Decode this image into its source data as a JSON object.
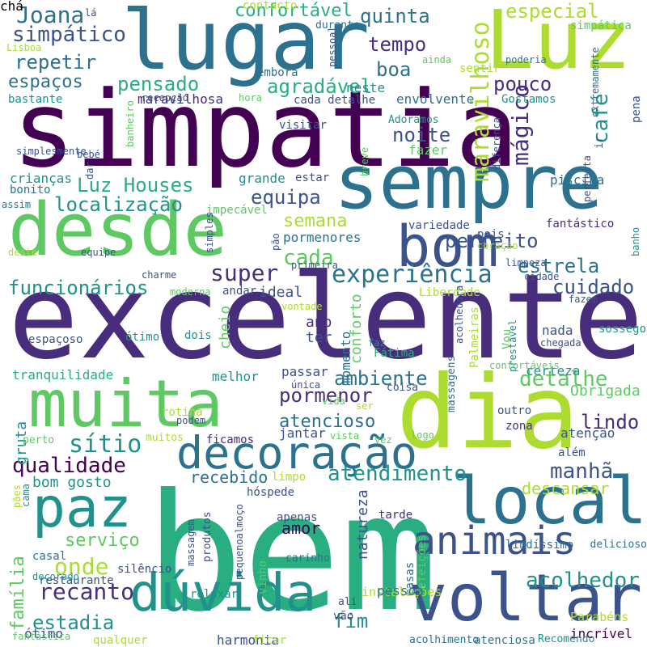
{
  "palette": [
    "#440154",
    "#472d7b",
    "#3b528b",
    "#2c728e",
    "#21918c",
    "#28ae80",
    "#5ec962",
    "#addc30",
    "#fde725"
  ],
  "words": [
    {
      "text": "bem",
      "color": "#28ae80"
    },
    {
      "text": "excelente",
      "color": "#472d7b"
    },
    {
      "text": "simpatia",
      "color": "#440154"
    },
    {
      "text": "dia",
      "color": "#addc30"
    },
    {
      "text": "sempre",
      "color": "#2c728e"
    },
    {
      "text": "lugar",
      "color": "#2c728e"
    },
    {
      "text": "Luz",
      "color": "#addc30"
    },
    {
      "text": "desde",
      "color": "#5ec962"
    },
    {
      "text": "muita",
      "color": "#5ec962"
    },
    {
      "text": "voltar",
      "color": "#3b528b"
    },
    {
      "text": "local",
      "color": "#2c728e"
    },
    {
      "text": "bom",
      "color": "#3b528b"
    },
    {
      "text": "paz",
      "color": "#21918c"
    },
    {
      "text": "dúvida",
      "color": "#21918c"
    },
    {
      "text": "decoração",
      "color": "#2c728e"
    },
    {
      "text": "animais",
      "color": "#3b528b"
    },
    {
      "text": "experiência",
      "color": "#2c728e"
    },
    {
      "text": "maravilhoso",
      "color": "#addc30"
    },
    {
      "text": "mágico",
      "color": "#472d7b"
    },
    {
      "text": "café",
      "color": "#21918c"
    },
    {
      "text": "Joana",
      "color": "#2c728e"
    },
    {
      "text": "simpático",
      "color": "#3b528b"
    },
    {
      "text": "confortável",
      "color": "#28ae80"
    },
    {
      "text": "quinta",
      "color": "#2c728e"
    },
    {
      "text": "especial",
      "color": "#addc30"
    },
    {
      "text": "repetir",
      "color": "#2c728e"
    },
    {
      "text": "pensado",
      "color": "#28ae80"
    },
    {
      "text": "tempo",
      "color": "#472d7b"
    },
    {
      "text": "agradável",
      "color": "#28ae80"
    },
    {
      "text": "boa",
      "color": "#2c728e"
    },
    {
      "text": "espaços",
      "color": "#2c728e"
    },
    {
      "text": "pouco",
      "color": "#472d7b"
    },
    {
      "text": "noite",
      "color": "#3b528b"
    },
    {
      "text": "Luz Houses",
      "color": "#28ae80"
    },
    {
      "text": "localização",
      "color": "#21918c"
    },
    {
      "text": "equipa",
      "color": "#3b528b"
    },
    {
      "text": "perfeito",
      "color": "#3b528b"
    },
    {
      "text": "semana",
      "color": "#addc30"
    },
    {
      "text": "cada",
      "color": "#5ec962"
    },
    {
      "text": "super",
      "color": "#472d7b"
    },
    {
      "text": "estrela",
      "color": "#2c728e"
    },
    {
      "text": "funcionários",
      "color": "#21918c"
    },
    {
      "text": "cuidado",
      "color": "#3b528b"
    },
    {
      "text": "ambiente",
      "color": "#2c728e"
    },
    {
      "text": "detalhe",
      "color": "#5ec962"
    },
    {
      "text": "pormenor",
      "color": "#472d7b"
    },
    {
      "text": "atencioso",
      "color": "#2c728e"
    },
    {
      "text": "sítio",
      "color": "#21918c"
    },
    {
      "text": "qualidade",
      "color": "#440154"
    },
    {
      "text": "atendimento",
      "color": "#21918c"
    },
    {
      "text": "manhã",
      "color": "#3b528b"
    },
    {
      "text": "lindo",
      "color": "#472d7b"
    },
    {
      "text": "Obrigada",
      "color": "#5ec962"
    },
    {
      "text": "recebido",
      "color": "#2c728e"
    },
    {
      "text": "bom gosto",
      "color": "#21918c"
    },
    {
      "text": "descansar",
      "color": "#addc30"
    },
    {
      "text": "serviço",
      "color": "#5ec962"
    },
    {
      "text": "onde",
      "color": "#addc30"
    },
    {
      "text": "amor",
      "color": "#440154"
    },
    {
      "text": "recanto",
      "color": "#472d7b"
    },
    {
      "text": "acolhedor",
      "color": "#21918c"
    },
    {
      "text": "estadia",
      "color": "#21918c"
    },
    {
      "text": "fim",
      "color": "#21918c"
    },
    {
      "text": "família",
      "color": "#5ec962"
    },
    {
      "text": "maravilhosa",
      "color": "#472d7b"
    },
    {
      "text": "bastante",
      "color": "#21918c"
    },
    {
      "text": "neste",
      "color": "#21918c"
    },
    {
      "text": "envolvente",
      "color": "#2c728e"
    },
    {
      "text": "cada detalhe",
      "color": "#3b528b"
    },
    {
      "text": "Gostamos",
      "color": "#21918c"
    },
    {
      "text": "visitar",
      "color": "#3b528b"
    },
    {
      "text": "fazer",
      "color": "#5ec962"
    },
    {
      "text": "Adoramos",
      "color": "#21918c"
    },
    {
      "text": "crianças",
      "color": "#21918c"
    },
    {
      "text": "grande",
      "color": "#21918c"
    },
    {
      "text": "estar",
      "color": "#3b528b"
    },
    {
      "text": "piscina",
      "color": "#2c728e"
    },
    {
      "text": "bonito",
      "color": "#2c728e"
    },
    {
      "text": "impecável",
      "color": "#5ec962"
    },
    {
      "text": "pormenores",
      "color": "#2c728e"
    },
    {
      "text": "variedade",
      "color": "#3b528b"
    },
    {
      "text": "fantástico",
      "color": "#472d7b"
    },
    {
      "text": "ideal",
      "color": "#3b528b"
    },
    {
      "text": "andar",
      "color": "#3b528b"
    },
    {
      "text": "Liberdade",
      "color": "#addc30"
    },
    {
      "text": "conforto",
      "color": "#5ec962"
    },
    {
      "text": "momento",
      "color": "#2c728e"
    },
    {
      "text": "ano",
      "color": "#472d7b"
    },
    {
      "text": "ter",
      "color": "#3b528b"
    },
    {
      "text": "cheio",
      "color": "#5ec962"
    },
    {
      "text": "nada",
      "color": "#3b528b"
    },
    {
      "text": "sossego",
      "color": "#21918c"
    },
    {
      "text": "espaçoso",
      "color": "#3b528b"
    },
    {
      "text": "Fátima",
      "color": "#28ae80"
    },
    {
      "text": "tranquilidade",
      "color": "#28ae80"
    },
    {
      "text": "melhor",
      "color": "#21918c"
    },
    {
      "text": "passar",
      "color": "#3b528b"
    },
    {
      "text": "certeza",
      "color": "#21918c"
    },
    {
      "text": "coisa",
      "color": "#3b528b"
    },
    {
      "text": "jantar",
      "color": "#3b528b"
    },
    {
      "text": "atenção",
      "color": "#3b528b"
    },
    {
      "text": "zona",
      "color": "#472d7b"
    },
    {
      "text": "outro",
      "color": "#3b528b"
    },
    {
      "text": "além",
      "color": "#3b528b"
    },
    {
      "text": "gruta",
      "color": "#21918c"
    },
    {
      "text": "perto",
      "color": "#5ec962"
    },
    {
      "text": "muitos",
      "color": "#addc30"
    },
    {
      "text": "ficamos",
      "color": "#472d7b"
    },
    {
      "text": "limpo",
      "color": "#addc30"
    },
    {
      "text": "hóspede",
      "color": "#3b528b"
    },
    {
      "text": "tarde",
      "color": "#472d7b"
    },
    {
      "text": "natureza",
      "color": "#3b528b"
    },
    {
      "text": "apenas",
      "color": "#3b528b"
    },
    {
      "text": "massagem",
      "color": "#3b528b"
    },
    {
      "text": "produtos",
      "color": "#3b528b"
    },
    {
      "text": "pequenoalmoço",
      "color": "#3b528b"
    },
    {
      "text": "lindíssimo",
      "color": "#2c728e"
    },
    {
      "text": "delicioso",
      "color": "#2c728e"
    },
    {
      "text": "casal",
      "color": "#2c728e"
    },
    {
      "text": "carinho",
      "color": "#2c728e"
    },
    {
      "text": "silêncio",
      "color": "#3b528b"
    },
    {
      "text": "casas",
      "color": "#2c728e"
    },
    {
      "text": "refeições",
      "color": "#5ec962"
    },
    {
      "text": "instalações",
      "color": "#addc30"
    },
    {
      "text": "pessoa",
      "color": "#2c728e"
    },
    {
      "text": "restaurante",
      "color": "#3b528b"
    },
    {
      "text": "relaxar",
      "color": "#21918c"
    },
    {
      "text": "vinho",
      "color": "#5ec962"
    },
    {
      "text": "ali",
      "color": "#3b528b"
    },
    {
      "text": "vão",
      "color": "#3b528b"
    },
    {
      "text": "Parabéns",
      "color": "#addc30"
    },
    {
      "text": "incrível",
      "color": "#440154"
    },
    {
      "text": "ótimo",
      "color": "#3b528b"
    },
    {
      "text": "qualquer",
      "color": "#addc30"
    },
    {
      "text": "harmonia",
      "color": "#3b528b"
    },
    {
      "text": "ficar",
      "color": "#addc30"
    },
    {
      "text": "acolhimento",
      "color": "#2c728e"
    },
    {
      "text": "atenciosa",
      "color": "#2c728e"
    },
    {
      "text": "Recomendo",
      "color": "#21918c"
    },
    {
      "text": "fantástica",
      "color": "#5ec962"
    },
    {
      "text": "lá",
      "color": "#3b528b"
    },
    {
      "text": "contacto",
      "color": "#addc30"
    },
    {
      "text": "simpática",
      "color": "#5ec962"
    },
    {
      "text": "durante",
      "color": "#2c728e"
    },
    {
      "text": "Lisboa",
      "color": "#addc30"
    },
    {
      "text": "poderia",
      "color": "#2c728e"
    },
    {
      "text": "embora",
      "color": "#2c728e"
    },
    {
      "text": "ainda",
      "color": "#5ec962"
    },
    {
      "text": "hora",
      "color": "#5ec962"
    },
    {
      "text": "pessoal",
      "color": "#3b528b"
    },
    {
      "text": "sentir",
      "color": "#addc30"
    },
    {
      "text": "ir",
      "color": "#3b528b"
    },
    {
      "text": "extremamente",
      "color": "#2c728e"
    },
    {
      "text": "pena",
      "color": "#3b528b"
    },
    {
      "text": "simplesmente",
      "color": "#3b528b"
    },
    {
      "text": "bebé",
      "color": "#3b528b"
    },
    {
      "text": "dar",
      "color": "#3b528b"
    },
    {
      "text": "recepção",
      "color": "#3b528b"
    },
    {
      "text": "banheiro",
      "color": "#5ec962"
    },
    {
      "text": "breve",
      "color": "#5ec962"
    },
    {
      "text": "diferença",
      "color": "#3b528b"
    },
    {
      "text": "perfeita",
      "color": "#3b528b"
    },
    {
      "text": "assim",
      "color": "#2c728e"
    },
    {
      "text": "simples",
      "color": "#3b528b"
    },
    {
      "text": "pão",
      "color": "#3b528b"
    },
    {
      "text": "primeira",
      "color": "#3b528b"
    },
    {
      "text": "coração",
      "color": "#addc30"
    },
    {
      "text": "pois",
      "color": "#3b528b"
    },
    {
      "text": "banho",
      "color": "#21918c"
    },
    {
      "text": "deste",
      "color": "#addc30"
    },
    {
      "text": "equipe",
      "color": "#3b528b"
    },
    {
      "text": "charme",
      "color": "#3b528b"
    },
    {
      "text": "limpeza",
      "color": "#3b528b"
    },
    {
      "text": "cidade",
      "color": "#3b528b"
    },
    {
      "text": "moderna",
      "color": "#5ec962"
    },
    {
      "text": "vontade",
      "color": "#addc30"
    },
    {
      "text": "fazem",
      "color": "#3b528b"
    },
    {
      "text": "Vou",
      "color": "#5ec962"
    },
    {
      "text": "prestável",
      "color": "#21918c"
    },
    {
      "text": "chegada",
      "color": "#3b528b"
    },
    {
      "text": "ótimo",
      "color": "#21918c"
    },
    {
      "text": "dois",
      "color": "#21918c"
    },
    {
      "text": "faz",
      "color": "#21918c"
    },
    {
      "text": "acolhedora",
      "color": "#3b528b"
    },
    {
      "text": "Palmeiras",
      "color": "#addc30"
    },
    {
      "text": "massagens",
      "color": "#2c728e"
    },
    {
      "text": "confortáveis",
      "color": "#5ec962"
    },
    {
      "text": "única",
      "color": "#3b528b"
    },
    {
      "text": "vida",
      "color": "#5ec962"
    },
    {
      "text": "ser",
      "color": "#addc30"
    },
    {
      "text": "rotina",
      "color": "#addc30"
    },
    {
      "text": "podem",
      "color": "#3b528b"
    },
    {
      "text": "vista",
      "color": "#5ec962"
    },
    {
      "text": "vez",
      "color": "#5ec962"
    },
    {
      "text": "logo",
      "color": "#5ec962"
    },
    {
      "text": "pães",
      "color": "#addc30"
    },
    {
      "text": "cama",
      "color": "#21918c"
    },
    {
      "text": "decorado",
      "color": "#21918c"
    },
    {
      "text": "chá",
      "color": "#21918c"
    }
  ]
}
